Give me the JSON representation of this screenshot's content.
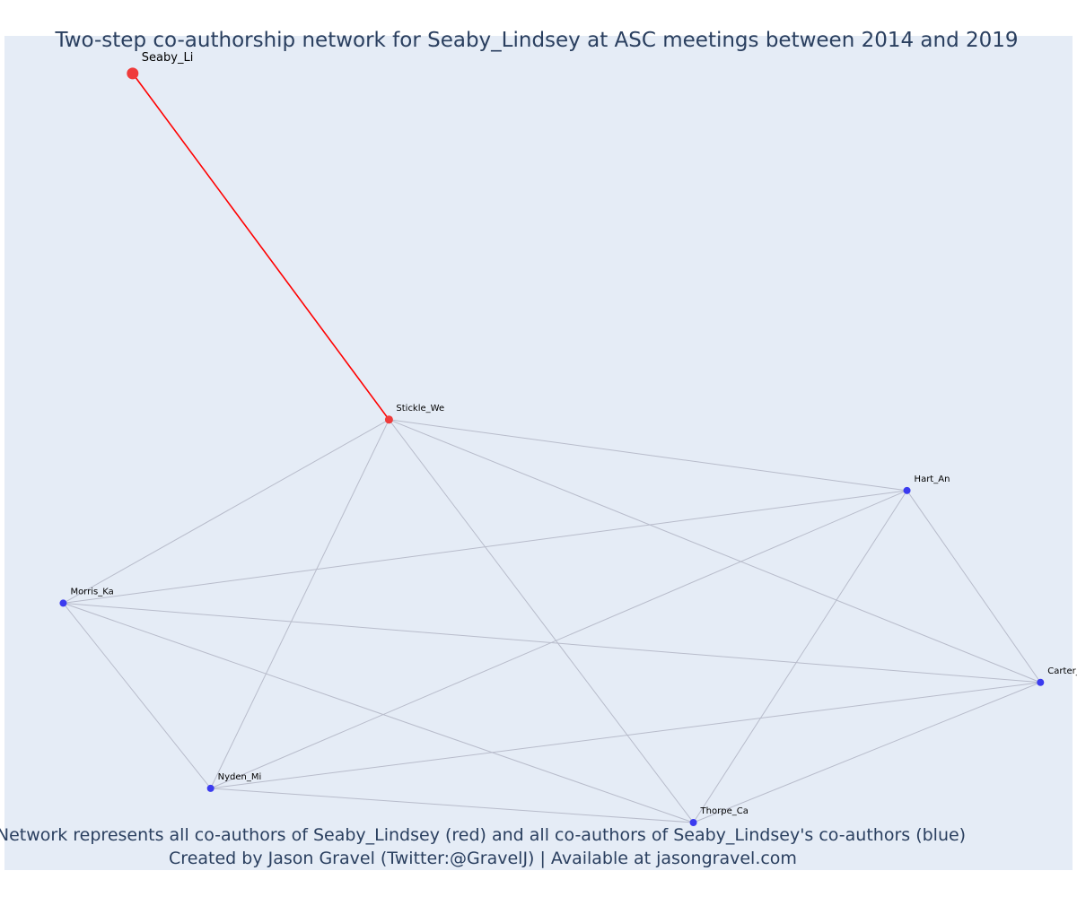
{
  "title": "Two-step co-authorship network for Seaby_Lindsey at ASC meetings between 2014 and 2019",
  "caption_lines": [
    "Network represents all co-authors of Seaby_Lindsey (red) and all co-authors of Seaby_Lindsey's co-authors (blue)",
    "Created by Jason Gravel (Twitter:@GravelJ) | Available at jasongravel.com"
  ],
  "colors": {
    "background": "#e5ecf6",
    "focal_edge": "#ff0000",
    "edge": "#b8bccb",
    "focal_node": "#ef3b3b",
    "node": "#3b3bef",
    "title": "#2a3f5f"
  },
  "chart_data": {
    "type": "network",
    "nodes": [
      {
        "id": "Seaby_Li",
        "label": "Seaby_Li",
        "group": "focal",
        "x": 0.12,
        "y": 0.955
      },
      {
        "id": "Stickle_We",
        "label": "Stickle_We",
        "group": "coauthor",
        "x": 0.36,
        "y": 0.54
      },
      {
        "id": "Hart_An",
        "label": "Hart_An",
        "group": "second_step",
        "x": 0.845,
        "y": 0.455
      },
      {
        "id": "Morris_Ka",
        "label": "Morris_Ka",
        "group": "second_step",
        "x": 0.055,
        "y": 0.32
      },
      {
        "id": "Carter_Vi",
        "label": "Carter_Vi",
        "group": "second_step",
        "x": 0.97,
        "y": 0.225
      },
      {
        "id": "Nyden_Mi",
        "label": "Nyden_Mi",
        "group": "second_step",
        "x": 0.193,
        "y": 0.098
      },
      {
        "id": "Thorpe_Ca",
        "label": "Thorpe_Ca",
        "group": "second_step",
        "x": 0.645,
        "y": 0.057
      }
    ],
    "edges": [
      {
        "source": "Seaby_Li",
        "target": "Stickle_We",
        "focal": true
      },
      {
        "source": "Stickle_We",
        "target": "Hart_An"
      },
      {
        "source": "Stickle_We",
        "target": "Morris_Ka"
      },
      {
        "source": "Stickle_We",
        "target": "Carter_Vi"
      },
      {
        "source": "Stickle_We",
        "target": "Nyden_Mi"
      },
      {
        "source": "Stickle_We",
        "target": "Thorpe_Ca"
      },
      {
        "source": "Hart_An",
        "target": "Morris_Ka"
      },
      {
        "source": "Hart_An",
        "target": "Carter_Vi"
      },
      {
        "source": "Hart_An",
        "target": "Nyden_Mi"
      },
      {
        "source": "Hart_An",
        "target": "Thorpe_Ca"
      },
      {
        "source": "Morris_Ka",
        "target": "Carter_Vi"
      },
      {
        "source": "Morris_Ka",
        "target": "Nyden_Mi"
      },
      {
        "source": "Morris_Ka",
        "target": "Thorpe_Ca"
      },
      {
        "source": "Carter_Vi",
        "target": "Nyden_Mi"
      },
      {
        "source": "Carter_Vi",
        "target": "Thorpe_Ca"
      },
      {
        "source": "Nyden_Mi",
        "target": "Thorpe_Ca"
      }
    ],
    "xlim": [
      0,
      1
    ],
    "ylim": [
      0,
      1
    ],
    "grid": false,
    "legend": "none"
  }
}
